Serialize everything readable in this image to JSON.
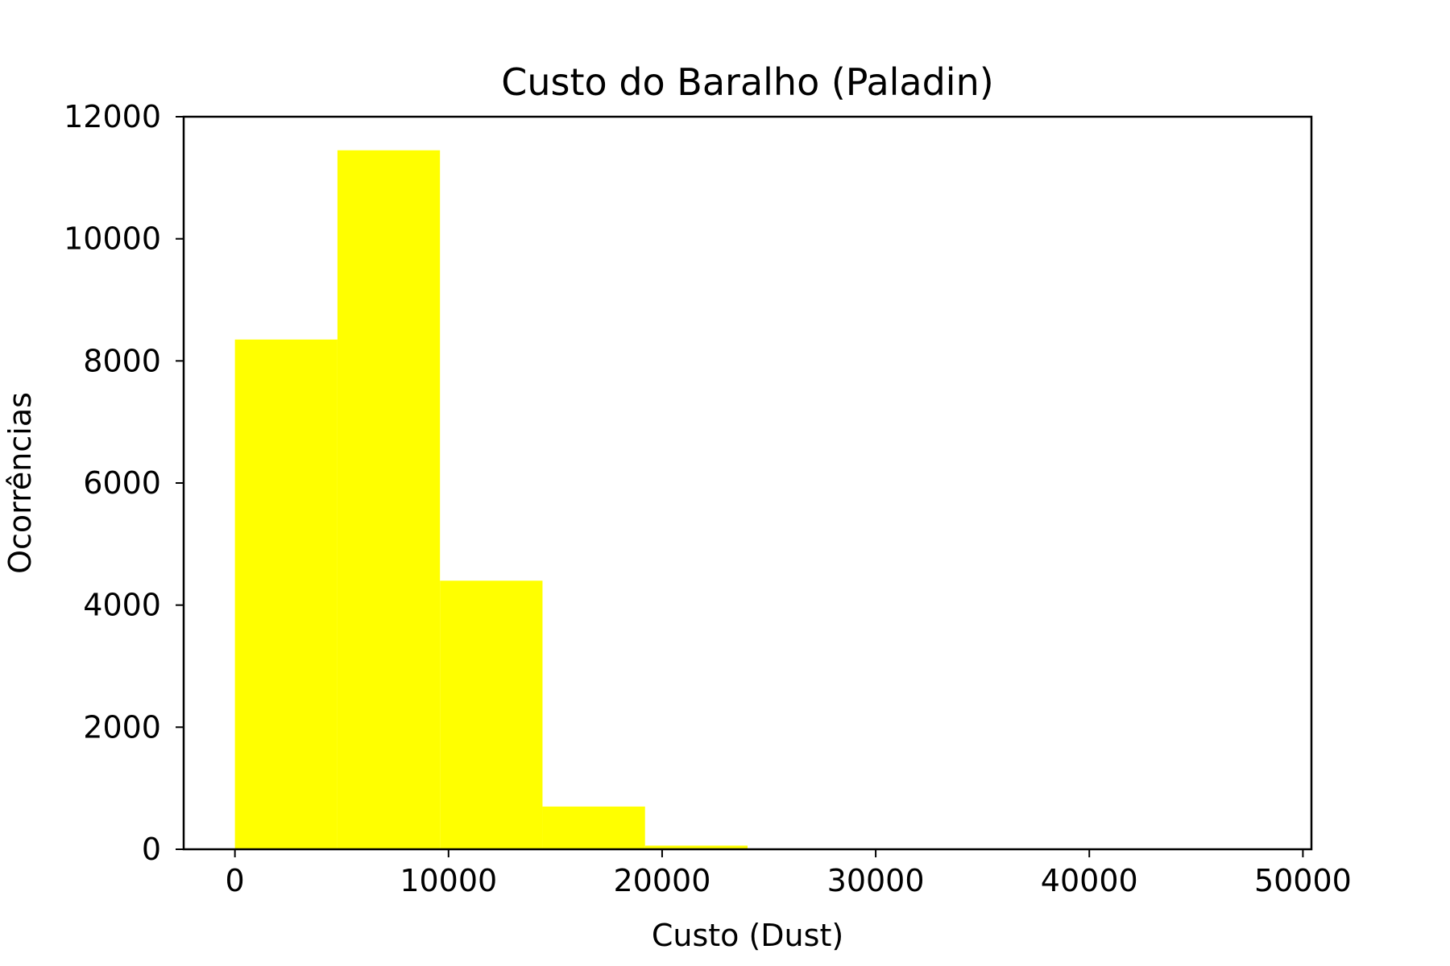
{
  "chart_data": {
    "type": "bar",
    "subtype": "histogram",
    "title": "Custo do Baralho (Paladin)",
    "xlabel": "Custo (Dust)",
    "ylabel": "Ocorrências",
    "bins": [
      {
        "start": 0,
        "end": 4800,
        "count": 8350
      },
      {
        "start": 4800,
        "end": 9600,
        "count": 11450
      },
      {
        "start": 9600,
        "end": 14400,
        "count": 4400
      },
      {
        "start": 14400,
        "end": 19200,
        "count": 700
      },
      {
        "start": 19200,
        "end": 24000,
        "count": 60
      }
    ],
    "xlim": [
      -2400,
      50400
    ],
    "ylim": [
      0,
      12000
    ],
    "xticks": [
      0,
      10000,
      20000,
      30000,
      40000,
      50000
    ],
    "xtick_labels": [
      "0",
      "10000",
      "20000",
      "30000",
      "40000",
      "50000"
    ],
    "yticks": [
      0,
      2000,
      4000,
      6000,
      8000,
      10000,
      12000
    ],
    "ytick_labels": [
      "0",
      "2000",
      "4000",
      "6000",
      "8000",
      "10000",
      "12000"
    ],
    "bar_color": "#ffff00",
    "grid": false,
    "legend": "none"
  }
}
